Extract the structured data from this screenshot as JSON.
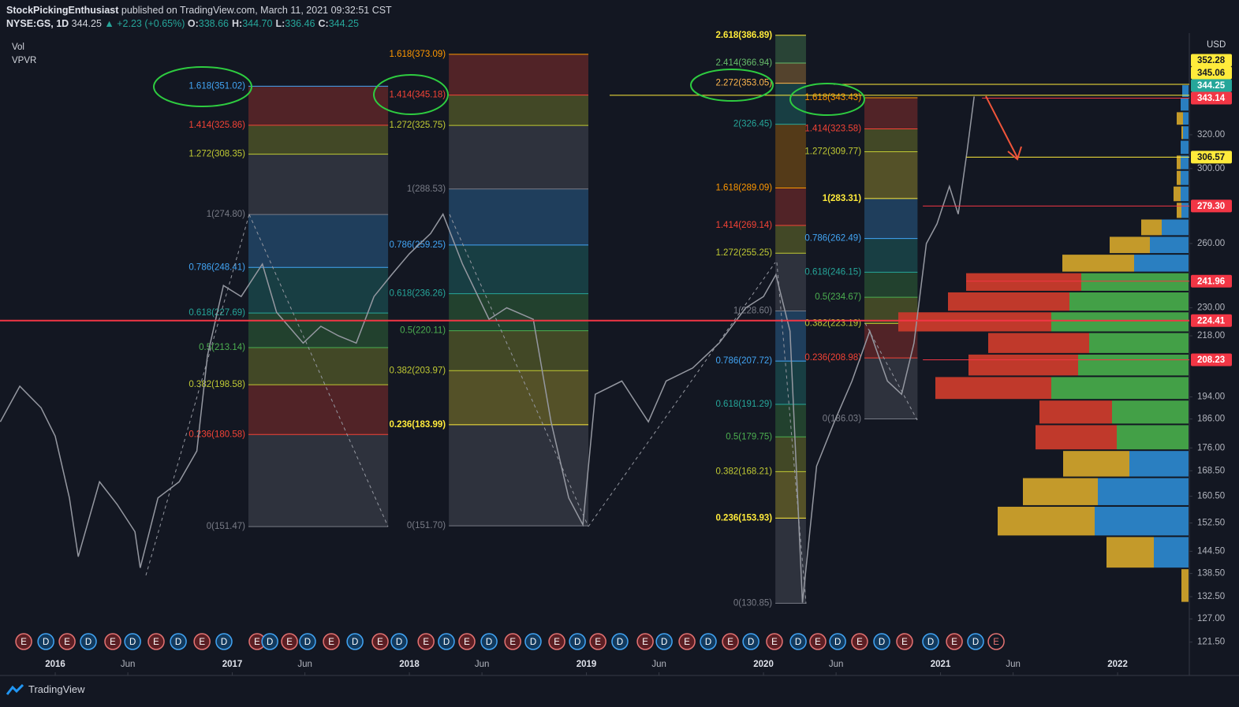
{
  "header": {
    "author": "StockPickingEnthusiast",
    "published": "published on TradingView.com, March 11, 2021 09:32:51 CST",
    "symbol": "NYSE:GS, 1D",
    "price": "344.25",
    "change": "▲ +2.23 (+0.65%)",
    "ohlc": [
      {
        "key": "O:",
        "value": "338.66"
      },
      {
        "key": "H:",
        "value": "344.70"
      },
      {
        "key": "L:",
        "value": "336.46"
      },
      {
        "key": "C:",
        "value": "344.25"
      }
    ],
    "indicators": [
      "Vol",
      "VPVR"
    ],
    "currency": "USD"
  },
  "footer": {
    "brand": "TradingView"
  },
  "chart_data": {
    "type": "line",
    "log_scale": true,
    "color": "#9598a1",
    "xlim": [
      2015.688,
      2022.405
    ],
    "ylim": [
      114,
      388.5
    ],
    "xticks": [
      {
        "value": 2016,
        "label": "2016"
      },
      {
        "value": 2016.41,
        "label": "Jun"
      },
      {
        "value": 2017,
        "label": "2017"
      },
      {
        "value": 2017.41,
        "label": "Jun"
      },
      {
        "value": 2018,
        "label": "2018"
      },
      {
        "value": 2018.41,
        "label": "Jun"
      },
      {
        "value": 2019,
        "label": "2019"
      },
      {
        "value": 2019.41,
        "label": "Jun"
      },
      {
        "value": 2020,
        "label": "2020"
      },
      {
        "value": 2020.41,
        "label": "Jun"
      },
      {
        "value": 2021,
        "label": "2021"
      },
      {
        "value": 2021.41,
        "label": "Jun"
      },
      {
        "value": 2022,
        "label": "2022"
      }
    ],
    "yticks": [
      {
        "value": 320,
        "label": "320.00"
      },
      {
        "value": 300,
        "label": "300.00"
      },
      {
        "value": 260,
        "label": "260.00"
      },
      {
        "value": 230,
        "label": "230.00"
      },
      {
        "value": 218,
        "label": "218.00"
      },
      {
        "value": 194,
        "label": "194.00"
      },
      {
        "value": 186,
        "label": "186.00"
      },
      {
        "value": 176,
        "label": "176.00"
      },
      {
        "value": 168.5,
        "label": "168.50"
      },
      {
        "value": 160.5,
        "label": "160.50"
      },
      {
        "value": 152.5,
        "label": "152.50"
      },
      {
        "value": 144.5,
        "label": "144.50"
      },
      {
        "value": 138.5,
        "label": "138.50"
      },
      {
        "value": 132.5,
        "label": "132.50"
      },
      {
        "value": 127,
        "label": "127.00"
      },
      {
        "value": 121.5,
        "label": "121.50"
      }
    ],
    "x": [
      2015.69,
      2015.8,
      2015.92,
      2016.0,
      2016.08,
      2016.13,
      2016.25,
      2016.35,
      2016.45,
      2016.48,
      2016.58,
      2016.7,
      2016.8,
      2016.86,
      2016.95,
      2017.05,
      2017.17,
      2017.25,
      2017.4,
      2017.5,
      2017.6,
      2017.7,
      2017.8,
      2017.9,
      2018.0,
      2018.12,
      2018.19,
      2018.3,
      2018.45,
      2018.55,
      2018.7,
      2018.8,
      2018.9,
      2018.98,
      2019.05,
      2019.2,
      2019.35,
      2019.45,
      2019.6,
      2019.75,
      2019.9,
      2020.0,
      2020.07,
      2020.15,
      2020.22,
      2020.3,
      2020.4,
      2020.5,
      2020.6,
      2020.7,
      2020.78,
      2020.85,
      2020.92,
      2020.98,
      2021.05,
      2021.1,
      2021.15,
      2021.19
    ],
    "values": [
      185,
      198,
      190,
      180,
      160,
      143,
      165,
      158,
      150,
      140,
      160,
      165,
      175,
      210,
      240,
      235,
      250,
      228,
      215,
      222,
      218,
      215,
      235,
      245,
      255,
      265,
      275,
      250,
      225,
      230,
      225,
      185,
      160,
      152,
      195,
      200,
      185,
      200,
      205,
      215,
      230,
      235,
      245,
      220,
      131,
      170,
      185,
      200,
      220,
      200,
      195,
      215,
      260,
      270,
      290,
      275,
      310,
      344.25
    ],
    "fib_blocks": [
      {
        "start": 2017.091,
        "end": 2017.88,
        "levels": [
          {
            "label": "1.618(351.02)",
            "value": 351.02,
            "color": "#42a5f5"
          },
          {
            "label": "1.414(325.86)",
            "value": 325.86,
            "color": "#f44336"
          },
          {
            "label": "1.272(308.35)",
            "value": 308.35,
            "color": "#c0ca33"
          },
          {
            "label": "1(274.80)",
            "value": 274.8,
            "color": "#787b86"
          },
          {
            "label": "0.786(248.41)",
            "value": 248.41,
            "color": "#42a5f5"
          },
          {
            "label": "0.618(227.69)",
            "value": 227.69,
            "color": "#26a69a"
          },
          {
            "label": "0.5(213.14)",
            "value": 213.14,
            "color": "#4caf50"
          },
          {
            "label": "0.382(198.58)",
            "value": 198.58,
            "color": "#c0ca33"
          },
          {
            "label": "0.236(180.58)",
            "value": 180.58,
            "color": "#f44336"
          },
          {
            "label": "0(151.47)",
            "value": 151.47,
            "color": "#787b86"
          }
        ]
      },
      {
        "start": 2018.223,
        "end": 2019.011,
        "levels": [
          {
            "label": "1.618(373.09)",
            "value": 373.09,
            "color": "#ff9800"
          },
          {
            "label": "1.414(345.18)",
            "value": 345.18,
            "color": "#f44336"
          },
          {
            "label": "1.272(325.75)",
            "value": 325.75,
            "color": "#c0ca33"
          },
          {
            "label": "1(288.53)",
            "value": 288.53,
            "color": "#787b86"
          },
          {
            "label": "0.786(259.25)",
            "value": 259.25,
            "color": "#42a5f5"
          },
          {
            "label": "0.618(236.26)",
            "value": 236.26,
            "color": "#26a69a"
          },
          {
            "label": "0.5(220.11)",
            "value": 220.11,
            "color": "#4caf50"
          },
          {
            "label": "0.382(203.97)",
            "value": 203.97,
            "color": "#c0ca33"
          },
          {
            "label": "0.236(183.99)",
            "value": 183.99,
            "color": "#ffeb3b",
            "bold": true
          },
          {
            "label": "0(151.70)",
            "value": 151.7,
            "color": "#787b86"
          }
        ]
      },
      {
        "start": 2020.067,
        "end": 2020.24,
        "levels": [
          {
            "label": "2.618(386.89)",
            "value": 386.89,
            "color": "#ffeb3b",
            "bold": true
          },
          {
            "label": "2.414(366.94)",
            "value": 366.94,
            "color": "#66bb6a"
          },
          {
            "label": "2.272(353.05)",
            "value": 353.05,
            "color": "#ffb74d"
          },
          {
            "label": "2(326.45)",
            "value": 326.45,
            "color": "#26a69a"
          },
          {
            "label": "1.618(289.09)",
            "value": 289.09,
            "color": "#ff9800"
          },
          {
            "label": "1.414(269.14)",
            "value": 269.14,
            "color": "#f44336"
          },
          {
            "label": "1.272(255.25)",
            "value": 255.25,
            "color": "#c0ca33"
          },
          {
            "label": "1(228.60)",
            "value": 228.6,
            "color": "#787b86"
          },
          {
            "label": "0.786(207.72)",
            "value": 207.72,
            "color": "#42a5f5"
          },
          {
            "label": "0.618(191.29)",
            "value": 191.29,
            "color": "#26a69a"
          },
          {
            "label": "0.5(179.75)",
            "value": 179.75,
            "color": "#4caf50"
          },
          {
            "label": "0.382(168.21)",
            "value": 168.21,
            "color": "#c0ca33"
          },
          {
            "label": "0.236(153.93)",
            "value": 153.93,
            "color": "#ffeb3b",
            "bold": true
          },
          {
            "label": "0(130.85)",
            "value": 130.85,
            "color": "#787b86"
          }
        ]
      },
      {
        "start": 2020.57,
        "end": 2020.87,
        "levels": [
          {
            "label": "1.618(343.43)",
            "value": 343.43,
            "color": "#ff9800"
          },
          {
            "label": "1.414(323.58)",
            "value": 323.58,
            "color": "#f44336"
          },
          {
            "label": "1.272(309.77)",
            "value": 309.77,
            "color": "#c0ca33"
          },
          {
            "label": "1(283.31)",
            "value": 283.31,
            "color": "#ffeb3b",
            "bold": true
          },
          {
            "label": "0.786(262.49)",
            "value": 262.49,
            "color": "#42a5f5"
          },
          {
            "label": "0.618(246.15)",
            "value": 246.15,
            "color": "#26a69a"
          },
          {
            "label": "0.5(234.67)",
            "value": 234.67,
            "color": "#4caf50"
          },
          {
            "label": "0.382(223.19)",
            "value": 223.19,
            "color": "#c0ca33"
          },
          {
            "label": "0.236(208.98)",
            "value": 208.98,
            "color": "#f44336"
          },
          {
            "label": "0(186.03)",
            "value": 186.03,
            "color": "#787b86"
          }
        ]
      }
    ],
    "volume_profile": {
      "bins": [
        131.0,
        139.85,
        148.7,
        157.55,
        166.4,
        175.25,
        184.1,
        192.95,
        201.8,
        210.65,
        219.5,
        228.35,
        237.2,
        246.05,
        254.9,
        263.75,
        272.6,
        281.45,
        290.3,
        299.15,
        308.0,
        316.85,
        325.7,
        334.55,
        343.4,
        352.25
      ],
      "up": [
        0,
        44,
        119,
        115,
        75,
        91,
        97,
        174,
        140,
        126,
        174,
        151,
        136,
        69,
        49,
        34,
        9,
        10,
        10,
        10,
        10,
        7,
        7,
        10,
        8
      ],
      "down": [
        9,
        60,
        123,
        95,
        84,
        103,
        92,
        147,
        139,
        128,
        194,
        154,
        146,
        91,
        51,
        26,
        6,
        9,
        5,
        5,
        0,
        2,
        8,
        0,
        0
      ],
      "value_area": [
        175.25,
        246.05
      ],
      "up_color": "#2a7fc1",
      "down_color": "#c49a2a",
      "va_up_color": "#43a047",
      "va_down_color": "#c0392b"
    },
    "price_lines": [
      {
        "value": 352.28,
        "label": "352.28",
        "color": "#ffeb3b",
        "from": 2020.396
      },
      {
        "value": 345.06,
        "label": "345.06",
        "color": "#ffeb3b",
        "from": 2019.131
      },
      {
        "value": 344.25,
        "label": "344.25",
        "color": "#26a69a"
      },
      {
        "value": 343.14,
        "label": "343.14",
        "color": "#f23645",
        "from": 2021.234
      },
      {
        "value": 306.57,
        "label": "306.57",
        "color": "#ffeb3b",
        "from": 2021.145
      },
      {
        "value": 279.3,
        "label": "279.30",
        "color": "#f23645",
        "from": 2020.9
      },
      {
        "value": 241.96,
        "label": "241.96",
        "color": "#f23645",
        "from": 2021.145
      },
      {
        "value": 224.41,
        "label": "224.41",
        "color": "#f23645",
        "from": 2015.688,
        "thick": true
      },
      {
        "value": 208.23,
        "label": "208.23",
        "color": "#f23645",
        "from": 2020.9
      }
    ],
    "events": [
      {
        "x": 2015.822,
        "label": "E"
      },
      {
        "x": 2015.947,
        "label": "D"
      },
      {
        "x": 2016.067,
        "label": "E"
      },
      {
        "x": 2016.187,
        "label": "D"
      },
      {
        "x": 2016.325,
        "label": "E"
      },
      {
        "x": 2016.437,
        "label": "D"
      },
      {
        "x": 2016.57,
        "label": "E"
      },
      {
        "x": 2016.695,
        "label": "D"
      },
      {
        "x": 2016.829,
        "label": "E"
      },
      {
        "x": 2016.953,
        "label": "D"
      },
      {
        "x": 2017.14,
        "label": "E"
      },
      {
        "x": 2017.212,
        "label": "D"
      },
      {
        "x": 2017.323,
        "label": "E"
      },
      {
        "x": 2017.425,
        "label": "D"
      },
      {
        "x": 2017.559,
        "label": "E"
      },
      {
        "x": 2017.693,
        "label": "D"
      },
      {
        "x": 2017.835,
        "label": "E"
      },
      {
        "x": 2017.942,
        "label": "D"
      },
      {
        "x": 2018.094,
        "label": "E"
      },
      {
        "x": 2018.209,
        "label": "D"
      },
      {
        "x": 2018.325,
        "label": "E"
      },
      {
        "x": 2018.45,
        "label": "D"
      },
      {
        "x": 2018.584,
        "label": "E"
      },
      {
        "x": 2018.699,
        "label": "D"
      },
      {
        "x": 2018.833,
        "label": "E"
      },
      {
        "x": 2018.949,
        "label": "D"
      },
      {
        "x": 2019.065,
        "label": "E"
      },
      {
        "x": 2019.189,
        "label": "D"
      },
      {
        "x": 2019.332,
        "label": "E"
      },
      {
        "x": 2019.439,
        "label": "D"
      },
      {
        "x": 2019.568,
        "label": "E"
      },
      {
        "x": 2019.688,
        "label": "D"
      },
      {
        "x": 2019.813,
        "label": "E"
      },
      {
        "x": 2019.929,
        "label": "D"
      },
      {
        "x": 2020.062,
        "label": "E"
      },
      {
        "x": 2020.196,
        "label": "D"
      },
      {
        "x": 2020.307,
        "label": "E"
      },
      {
        "x": 2020.419,
        "label": "D"
      },
      {
        "x": 2020.543,
        "label": "E"
      },
      {
        "x": 2020.668,
        "label": "D"
      },
      {
        "x": 2020.797,
        "label": "E"
      },
      {
        "x": 2020.944,
        "label": "D"
      },
      {
        "x": 2021.078,
        "label": "E"
      },
      {
        "x": 2021.198,
        "label": "D"
      },
      {
        "x": 2021.314,
        "label": "E",
        "hollow": true
      }
    ]
  }
}
